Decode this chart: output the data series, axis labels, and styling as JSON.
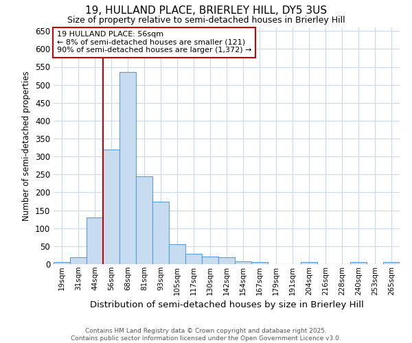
{
  "title": "19, HULLAND PLACE, BRIERLEY HILL, DY5 3US",
  "subtitle": "Size of property relative to semi-detached houses in Brierley Hill",
  "xlabel": "Distribution of semi-detached houses by size in Brierley Hill",
  "ylabel": "Number of semi-detached properties",
  "footer_line1": "Contains HM Land Registry data © Crown copyright and database right 2025.",
  "footer_line2": "Contains public sector information licensed under the Open Government Licence v3.0.",
  "annotation_title": "19 HULLAND PLACE: 56sqm",
  "annotation_line1": "← 8% of semi-detached houses are smaller (121)",
  "annotation_line2": "90% of semi-detached houses are larger (1,372) →",
  "property_size_idx": 3,
  "bar_color": "#c8dcf0",
  "bar_edge_color": "#5b9bd5",
  "redline_color": "#cc0000",
  "annotation_box_edgecolor": "#cc0000",
  "background_color": "#ffffff",
  "grid_color": "#c8d8f0",
  "categories": [
    "19sqm",
    "31sqm",
    "44sqm",
    "56sqm",
    "68sqm",
    "81sqm",
    "93sqm",
    "105sqm",
    "117sqm",
    "130sqm",
    "142sqm",
    "154sqm",
    "167sqm",
    "179sqm",
    "191sqm",
    "204sqm",
    "216sqm",
    "228sqm",
    "240sqm",
    "253sqm",
    "265sqm"
  ],
  "values": [
    5,
    20,
    130,
    320,
    535,
    245,
    175,
    55,
    28,
    22,
    20,
    8,
    5,
    0,
    0,
    5,
    0,
    0,
    5,
    0,
    5
  ],
  "ylim": [
    0,
    660
  ],
  "yticks": [
    0,
    50,
    100,
    150,
    200,
    250,
    300,
    350,
    400,
    450,
    500,
    550,
    600,
    650
  ]
}
